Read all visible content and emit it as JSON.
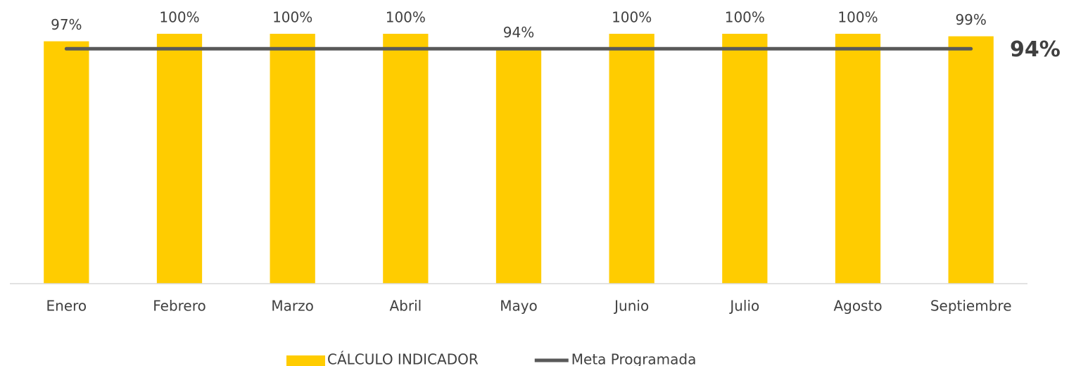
{
  "chart_data": {
    "type": "bar-line",
    "categories": [
      "Enero",
      "Febrero",
      "Marzo",
      "Abril",
      "Mayo",
      "Junio",
      "Julio",
      "Agosto",
      "Septiembre"
    ],
    "series": [
      {
        "name": "CÁLCULO INDICADOR",
        "type": "bar",
        "color": "#ffcc00",
        "values": [
          97,
          100,
          100,
          100,
          94,
          100,
          100,
          100,
          99
        ],
        "value_labels": [
          "97%",
          "100%",
          "100%",
          "100%",
          "94%",
          "100%",
          "100%",
          "100%",
          "99%"
        ]
      },
      {
        "name": "Meta Programada",
        "type": "line",
        "color": "#595959",
        "values": [
          94,
          94,
          94,
          94,
          94,
          94,
          94,
          94,
          94
        ]
      }
    ],
    "annotation": "94%",
    "ylim": [
      0,
      100
    ],
    "legend": "bottom"
  }
}
